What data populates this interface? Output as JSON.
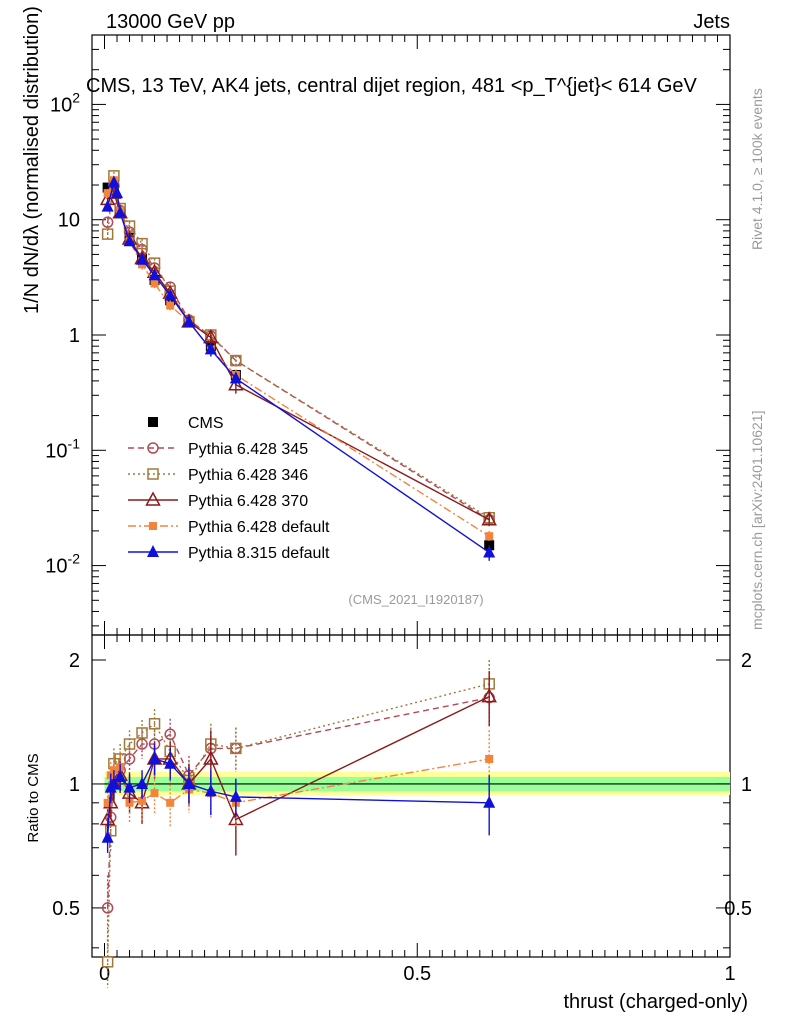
{
  "header": {
    "left": "13000 GeV pp",
    "right": "Jets",
    "subtitle": "CMS, 13 TeV, AK4 jets, central dijet region, 481 <p_T^{jet}< 614 GeV"
  },
  "side_text": {
    "rivet": "Rivet 4.1.0, ≥ 100k events",
    "mcplots": "mcplots.cern.ch [arXiv:2401.10621]"
  },
  "analysis_label": "(CMS_2021_I1920187)",
  "colors": {
    "data": "#000000",
    "p345": "#b04a5a",
    "p346": "#a0793a",
    "p370": "#8b1a1a",
    "p6def": "#f4843c",
    "p8def": "#1010dd",
    "band_yellow": "#ffff99",
    "band_green": "#99ff99"
  },
  "chart_data": [
    {
      "type": "scatter",
      "panel": "main",
      "ylabel": "1/N dN/dλ (normalised distribution)",
      "xlabel": "",
      "xlim": [
        -0.02,
        1.0
      ],
      "ylim": [
        0.0025,
        400
      ],
      "yscale": "log",
      "y_ticks": [
        {
          "v": 0.01,
          "label": "10^-2"
        },
        {
          "v": 0.1,
          "label": "10^-1"
        },
        {
          "v": 1,
          "label": "1"
        },
        {
          "v": 10,
          "label": "10"
        },
        {
          "v": 100,
          "label": "10^2"
        }
      ],
      "x": [
        0.005,
        0.015,
        0.025,
        0.04,
        0.06,
        0.08,
        0.105,
        0.135,
        0.17,
        0.21,
        0.615
      ],
      "series": [
        {
          "name": "CMS",
          "key": "data",
          "marker": "square-filled",
          "line": "none",
          "values": [
            19,
            20,
            11.5,
            7.0,
            4.6,
            3.0,
            2.0,
            1.3,
            0.8,
            0.45,
            0.015
          ],
          "errors": [
            1.5,
            1.5,
            0.8,
            0.5,
            0.3,
            0.2,
            0.15,
            0.1,
            0.08,
            0.05,
            0.002
          ]
        },
        {
          "name": "Pythia 6.428 345",
          "key": "p345",
          "marker": "circle-open",
          "line": "dashed",
          "values": [
            9.5,
            20,
            12,
            7.8,
            5.5,
            3.8,
            2.6,
            1.35,
            0.98,
            0.6,
            0.025
          ],
          "errors": [
            1.0,
            1.5,
            1.0,
            0.8,
            0.5,
            0.4,
            0.25,
            0.12,
            0.1,
            0.06,
            0.003
          ]
        },
        {
          "name": "Pythia 6.428 346",
          "key": "p346",
          "marker": "square-open",
          "line": "dotted",
          "values": [
            7.5,
            24,
            12.5,
            8.8,
            6.2,
            4.2,
            2.4,
            1.3,
            1.0,
            0.6,
            0.026
          ],
          "errors": [
            0.8,
            2.0,
            1.0,
            0.8,
            0.6,
            0.4,
            0.25,
            0.12,
            0.1,
            0.06,
            0.003
          ]
        },
        {
          "name": "Pythia 6.428 370",
          "key": "p370",
          "marker": "triangle-open",
          "line": "solid",
          "values": [
            15,
            17,
            11.5,
            6.8,
            4.6,
            3.5,
            2.3,
            1.3,
            0.95,
            0.37,
            0.025
          ],
          "errors": [
            1.5,
            1.5,
            1.0,
            0.6,
            0.4,
            0.3,
            0.2,
            0.12,
            0.15,
            0.06,
            0.003
          ]
        },
        {
          "name": "Pythia 6.428 default",
          "key": "p6def",
          "marker": "square-filled-small",
          "line": "dashdot",
          "values": [
            17,
            22,
            12,
            6.5,
            4.1,
            2.8,
            1.8,
            1.3,
            0.75,
            0.45,
            0.018
          ],
          "errors": [
            1.5,
            1.5,
            1.0,
            0.6,
            0.4,
            0.25,
            0.2,
            0.12,
            0.08,
            0.05,
            0.002
          ]
        },
        {
          "name": "Pythia 8.315 default",
          "key": "p8def",
          "marker": "triangle-filled",
          "line": "solid",
          "values": [
            13,
            21,
            17,
            11.5,
            6.5,
            4.5,
            3.3,
            2.2,
            1.3,
            0.75,
            0.42,
            0.013
          ],
          "x_override": [
            0.005,
            0.015,
            0.02,
            0.025,
            0.04,
            0.06,
            0.08,
            0.105,
            0.135,
            0.17,
            0.21,
            0.615
          ],
          "errors": [
            1.2,
            1.5,
            1.2,
            0.8,
            0.5,
            0.4,
            0.3,
            0.2,
            0.12,
            0.1,
            0.05,
            0.002
          ]
        }
      ]
    },
    {
      "type": "scatter",
      "panel": "ratio",
      "ylabel": "Ratio to CMS",
      "xlabel": "thrust (charged-only)",
      "xlim": [
        -0.02,
        1.0
      ],
      "ylim": [
        0.38,
        2.3
      ],
      "yscale": "log",
      "y_ticks": [
        {
          "v": 0.5,
          "label": "0.5"
        },
        {
          "v": 1,
          "label": "1"
        },
        {
          "v": 2,
          "label": "2"
        }
      ],
      "x_ticks": [
        {
          "v": 0,
          "label": "0"
        },
        {
          "v": 0.5,
          "label": "0.5"
        },
        {
          "v": 1,
          "label": "1"
        }
      ],
      "band": {
        "x_from": 0.0,
        "x_to": 1.0,
        "yellow": [
          0.94,
          1.07
        ],
        "green": [
          0.96,
          1.04
        ]
      },
      "x": [
        0.005,
        0.01,
        0.015,
        0.025,
        0.04,
        0.06,
        0.08,
        0.105,
        0.135,
        0.17,
        0.21,
        0.615
      ],
      "series": [
        {
          "name": "Pythia 6.428 345",
          "key": "p345",
          "marker": "circle-open",
          "line": "dashed",
          "values": [
            0.5,
            0.83,
            1.0,
            1.08,
            1.15,
            1.25,
            1.25,
            1.32,
            1.05,
            1.22,
            1.22,
            1.62
          ],
          "errors": [
            0.1,
            0.1,
            0.1,
            0.1,
            0.1,
            0.1,
            0.1,
            0.12,
            0.12,
            0.15,
            0.15,
            0.25
          ]
        },
        {
          "name": "Pythia 6.428 346",
          "key": "p346",
          "marker": "square-open",
          "line": "dotted",
          "values": [
            0.37,
            0.77,
            1.12,
            1.15,
            1.25,
            1.33,
            1.4,
            1.2,
            1.02,
            1.25,
            1.22,
            1.75
          ],
          "errors": [
            0.05,
            0.08,
            0.1,
            0.1,
            0.1,
            0.1,
            0.12,
            0.12,
            0.12,
            0.15,
            0.15,
            0.25
          ]
        },
        {
          "name": "Pythia 6.428 370",
          "key": "p370",
          "marker": "triangle-open",
          "line": "solid",
          "values": [
            0.82,
            0.9,
            1.0,
            1.05,
            0.95,
            0.9,
            1.15,
            1.15,
            1.0,
            1.15,
            0.82,
            1.63
          ],
          "errors": [
            0.08,
            0.08,
            0.1,
            0.1,
            0.1,
            0.1,
            0.12,
            0.12,
            0.12,
            0.2,
            0.15,
            0.25
          ]
        },
        {
          "name": "Pythia 6.428 default",
          "key": "p6def",
          "marker": "square-filled-small",
          "line": "dashdot",
          "values": [
            0.9,
            1.05,
            1.08,
            1.1,
            0.9,
            0.91,
            0.95,
            0.9,
            0.97,
            0.95,
            0.9,
            1.15
          ],
          "errors": [
            0.08,
            0.08,
            0.1,
            0.1,
            0.1,
            0.1,
            0.1,
            0.12,
            0.12,
            0.12,
            0.12,
            0.2
          ]
        },
        {
          "name": "Pythia 8.315 default",
          "key": "p8def",
          "marker": "triangle-filled",
          "line": "solid",
          "values": [
            0.74,
            0.98,
            1.0,
            1.04,
            0.98,
            1.0,
            1.15,
            1.12,
            1.0,
            0.96,
            0.93,
            0.9
          ],
          "errors": [
            0.06,
            0.08,
            0.08,
            0.08,
            0.08,
            0.08,
            0.1,
            0.1,
            0.1,
            0.12,
            0.1,
            0.15
          ]
        }
      ]
    }
  ]
}
